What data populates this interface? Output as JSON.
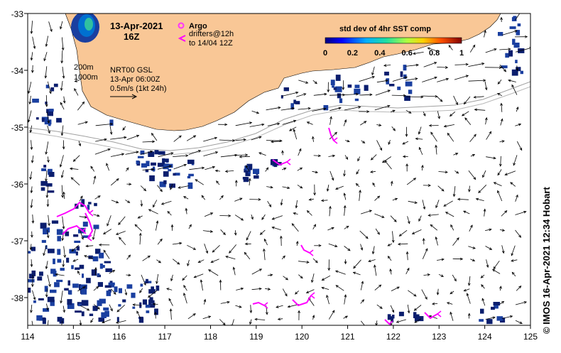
{
  "title": {
    "date": "13-Apr-2021",
    "hour": "16Z"
  },
  "legend": {
    "argo_label": "Argo",
    "drifters_line1": "drifters@12h",
    "drifters_line2": "to 14/04 12Z",
    "argo_color": "#ff33ff",
    "drifter_color": "#ff00ff"
  },
  "contours": {
    "c200": "200m",
    "c1000": "1000m"
  },
  "velocity_info": {
    "line1": "NRT00 GSL",
    "line2": "13-Apr 06:00Z",
    "line3": "0.5m/s (1kt 24h)"
  },
  "colorbar": {
    "title": "std dev of 4hr SST comp",
    "ticks": [
      "0",
      "0.2",
      "0.4",
      "0.6",
      "0.8",
      "1"
    ]
  },
  "axes": {
    "x_ticks": [
      "114",
      "115",
      "116",
      "117",
      "118",
      "119",
      "120",
      "121",
      "122",
      "123",
      "124",
      "125"
    ],
    "y_ticks": [
      "-33",
      "-34",
      "-35",
      "-36",
      "-37",
      "-38"
    ]
  },
  "credit": "© IMOS 16-Apr-2021 12:34 Hobart",
  "colors": {
    "land": "#f9c796",
    "sst_patch": "#1a3fa0",
    "sst_patch_dark": "#0b1e6e",
    "arrow": "#000000",
    "contour": "#a0a0a0"
  }
}
